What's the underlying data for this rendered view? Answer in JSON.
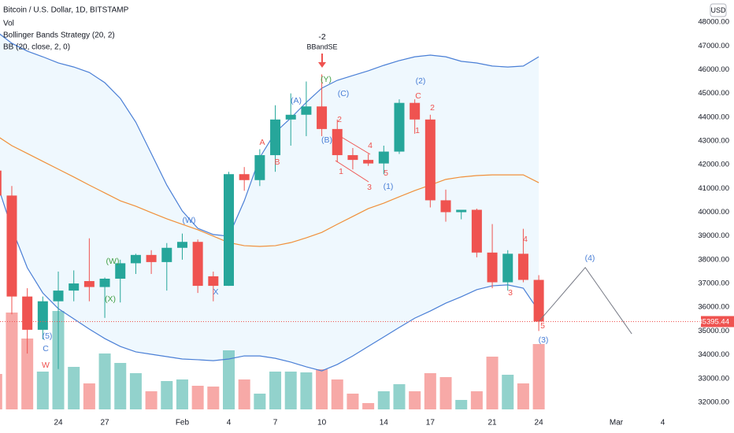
{
  "chart_data": {
    "type": "candlestick",
    "title": "Bitcoin / U.S. Dollar, 1D, BITSTAMP",
    "indicators": [
      "Vol",
      "Bollinger Bands Strategy (20, 2)",
      "BB (20, close, 2, 0)"
    ],
    "currency": "USD",
    "categories": [
      null,
      null,
      null,
      null,
      "24",
      null,
      null,
      "27",
      null,
      null,
      null,
      null,
      "Feb",
      null,
      null,
      "4",
      null,
      null,
      "7",
      null,
      null,
      "10",
      null,
      null,
      null,
      "14",
      null,
      null,
      "17",
      null,
      null,
      null,
      "21",
      null,
      null,
      "24",
      null,
      null,
      null,
      null,
      "Mar",
      null,
      null,
      "4"
    ],
    "open": [
      41750,
      40700,
      36450,
      35050,
      36250,
      36700,
      37100,
      36850,
      37200,
      37850,
      38200,
      37900,
      38500,
      38750,
      37300,
      36900,
      41600,
      41350,
      42400,
      43900,
      44100,
      44450,
      43500,
      42400,
      42200,
      42050,
      42550,
      44600,
      43900,
      40500,
      40000,
      40100,
      38300,
      37050,
      38250,
      37150,
      null,
      null,
      null,
      null,
      null,
      null,
      null,
      null
    ],
    "high": [
      42150,
      41100,
      36800,
      36450,
      37500,
      37550,
      38900,
      37250,
      38000,
      38250,
      38400,
      38700,
      39100,
      38850,
      37500,
      41700,
      41900,
      42650,
      44500,
      45000,
      45500,
      45800,
      43900,
      42700,
      42450,
      42800,
      44750,
      44750,
      44100,
      40950,
      40100,
      40150,
      39500,
      38400,
      39300,
      37350,
      null,
      null,
      null,
      null,
      null,
      null,
      null,
      null
    ],
    "low": [
      40500,
      35700,
      34050,
      34650,
      33400,
      36250,
      36250,
      35550,
      36200,
      37400,
      37400,
      36700,
      38000,
      36600,
      36250,
      36900,
      40900,
      41100,
      41700,
      42800,
      43200,
      43200,
      42100,
      41800,
      41950,
      41600,
      42450,
      43300,
      40200,
      39600,
      39700,
      38100,
      36800,
      36700,
      37050,
      35000,
      null,
      null,
      null,
      null,
      null,
      null,
      null,
      null
    ],
    "close": [
      40700,
      36450,
      35050,
      36250,
      36700,
      37000,
      36850,
      37200,
      37850,
      38200,
      37900,
      38500,
      38750,
      36900,
      36900,
      41600,
      41350,
      42400,
      43900,
      44100,
      44450,
      43500,
      42400,
      42200,
      42050,
      42550,
      44600,
      43900,
      40500,
      40000,
      40100,
      38300,
      37050,
      38250,
      37150,
      35395.44,
      null,
      null,
      null,
      null,
      null,
      null,
      null,
      null
    ],
    "volume": [
      45,
      123,
      90,
      48,
      125,
      54,
      33,
      71,
      59,
      46,
      23,
      36,
      38,
      30,
      29,
      75,
      38,
      20,
      48,
      48,
      47,
      51,
      38,
      20,
      8,
      23,
      32,
      23,
      46,
      41,
      12,
      23,
      67,
      44,
      33,
      83,
      null,
      null,
      null,
      null,
      null,
      null,
      null,
      null
    ],
    "up_color": "#26a69a",
    "down_color": "#ef5350",
    "bollinger": {
      "upper": [
        47610,
        47110,
        46780,
        46540,
        46280,
        46110,
        45880,
        45450,
        44790,
        43790,
        42470,
        41140,
        40050,
        39320,
        39060,
        38990,
        40480,
        42300,
        43360,
        43960,
        44620,
        45220,
        45550,
        45750,
        45950,
        46180,
        46380,
        46540,
        46610,
        46540,
        46350,
        46280,
        46150,
        46110,
        46150,
        46540,
        null,
        null,
        null,
        null,
        null,
        null,
        null,
        null
      ],
      "middle": [
        43230,
        42800,
        42470,
        42140,
        41810,
        41480,
        41140,
        40810,
        40480,
        40250,
        39980,
        39720,
        39490,
        39260,
        38990,
        38720,
        38590,
        38560,
        38590,
        38720,
        38920,
        39150,
        39490,
        39820,
        40150,
        40380,
        40650,
        40910,
        41140,
        41380,
        41480,
        41540,
        41570,
        41570,
        41570,
        41240,
        null,
        null,
        null,
        null,
        null,
        null,
        null,
        null
      ],
      "lower": [
        41310,
        39320,
        37660,
        36600,
        35940,
        35510,
        35080,
        34680,
        34350,
        34120,
        34020,
        33920,
        33820,
        33790,
        33750,
        33820,
        33950,
        33950,
        33850,
        33690,
        33490,
        33320,
        33590,
        33950,
        34350,
        34750,
        35150,
        35540,
        35840,
        36170,
        36440,
        36740,
        36900,
        36940,
        36800,
        35840,
        null,
        null,
        null,
        null,
        null,
        null,
        null,
        null
      ],
      "band_color": "#4a7fd6",
      "middle_color": "#f0903a"
    },
    "projection": {
      "color": "#787b86",
      "values": [
        null,
        null,
        null,
        null,
        null,
        null,
        null,
        null,
        null,
        null,
        null,
        null,
        null,
        null,
        null,
        null,
        null,
        null,
        null,
        null,
        null,
        null,
        null,
        null,
        null,
        null,
        null,
        null,
        null,
        null,
        null,
        null,
        null,
        null,
        null,
        35400,
        36150,
        36910,
        37670,
        36740,
        35810,
        34880,
        null,
        null
      ]
    },
    "last_price": 35395.44,
    "last_price_color": "#ef5350",
    "ylim": [
      31700,
      48930
    ],
    "yticks": [
      {
        "value": 32000,
        "label": "32000.00"
      },
      {
        "value": 33000,
        "label": "33000.00"
      },
      {
        "value": 34000,
        "label": "34000.00"
      },
      {
        "value": 35000,
        "label": "35000.00"
      },
      {
        "value": 36000,
        "label": "36000.00"
      },
      {
        "value": 37000,
        "label": "37000.00"
      },
      {
        "value": 38000,
        "label": "38000.00"
      },
      {
        "value": 39000,
        "label": "39000.00"
      },
      {
        "value": 40000,
        "label": "40000.00"
      },
      {
        "value": 41000,
        "label": "41000.00"
      },
      {
        "value": 42000,
        "label": "42000.00"
      },
      {
        "value": 43000,
        "label": "43000.00"
      },
      {
        "value": 44000,
        "label": "44000.00"
      },
      {
        "value": 45000,
        "label": "45000.00"
      },
      {
        "value": 46000,
        "label": "46000.00"
      },
      {
        "value": 47000,
        "label": "47000.00"
      },
      {
        "value": 48000,
        "label": "48000.00"
      }
    ],
    "annotations": [
      {
        "text": "-2",
        "color": "#131722"
      },
      {
        "text": "BBandSE",
        "color": "#131722"
      },
      {
        "text": "(5)",
        "color": "#4a7fd6"
      },
      {
        "text": "C",
        "color": "#4a7fd6"
      },
      {
        "text": "W",
        "color": "#ef5350"
      },
      {
        "text": "(W)",
        "color": "#43a047"
      },
      {
        "text": "(X)",
        "color": "#43a047"
      },
      {
        "text": "(Y)",
        "color": "#43a047"
      },
      {
        "text": "(W)",
        "color": "#4a7fd6"
      },
      {
        "text": "X",
        "color": "#4a7fd6"
      },
      {
        "text": "(A)",
        "color": "#4a7fd6"
      },
      {
        "text": "(C)",
        "color": "#4a7fd6"
      },
      {
        "text": "(B)",
        "color": "#4a7fd6"
      },
      {
        "text": "(1)",
        "color": "#4a7fd6"
      },
      {
        "text": "(2)",
        "color": "#4a7fd6"
      },
      {
        "text": "(4)",
        "color": "#4a7fd6"
      },
      {
        "text": "(3)",
        "color": "#4a7fd6"
      },
      {
        "text": "A",
        "color": "#ef5350"
      },
      {
        "text": "B",
        "color": "#ef5350"
      },
      {
        "text": "2",
        "color": "#ef5350"
      },
      {
        "text": "1",
        "color": "#ef5350"
      },
      {
        "text": "4",
        "color": "#ef5350"
      },
      {
        "text": "3",
        "color": "#ef5350"
      },
      {
        "text": "5",
        "color": "#ef5350"
      },
      {
        "text": "C",
        "color": "#ef5350"
      },
      {
        "text": "1",
        "color": "#ef5350"
      },
      {
        "text": "2",
        "color": "#ef5350"
      },
      {
        "text": "3",
        "color": "#ef5350"
      },
      {
        "text": "4",
        "color": "#ef5350"
      },
      {
        "text": "5",
        "color": "#ef5350"
      }
    ]
  }
}
